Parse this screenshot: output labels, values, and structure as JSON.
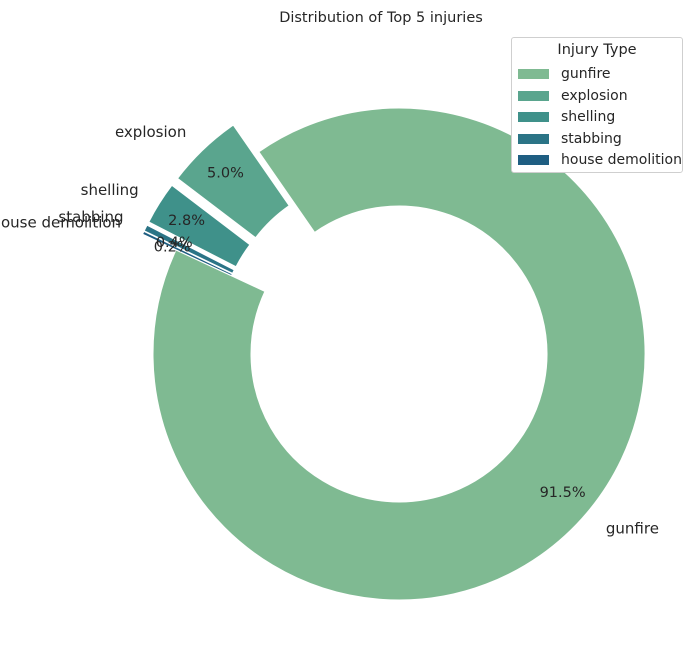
{
  "chart_data": {
    "type": "pie",
    "variant": "donut",
    "title": "Distribution of Top 5 injuries",
    "legend_title": "Injury Type",
    "legend_position": "top-right",
    "categories": [
      "gunfire",
      "explosion",
      "shelling",
      "stabbing",
      "house demolition"
    ],
    "values": [
      91.5,
      5.0,
      2.8,
      0.4,
      0.2
    ],
    "percent_labels": [
      "91.5%",
      "5.0%",
      "2.8%",
      "0.4%",
      "0.2%"
    ],
    "colors": [
      "#7fba92",
      "#5aa58e",
      "#3f918a",
      "#2b7486",
      "#1f5e82"
    ],
    "exploded": [
      false,
      true,
      true,
      true,
      true
    ]
  }
}
